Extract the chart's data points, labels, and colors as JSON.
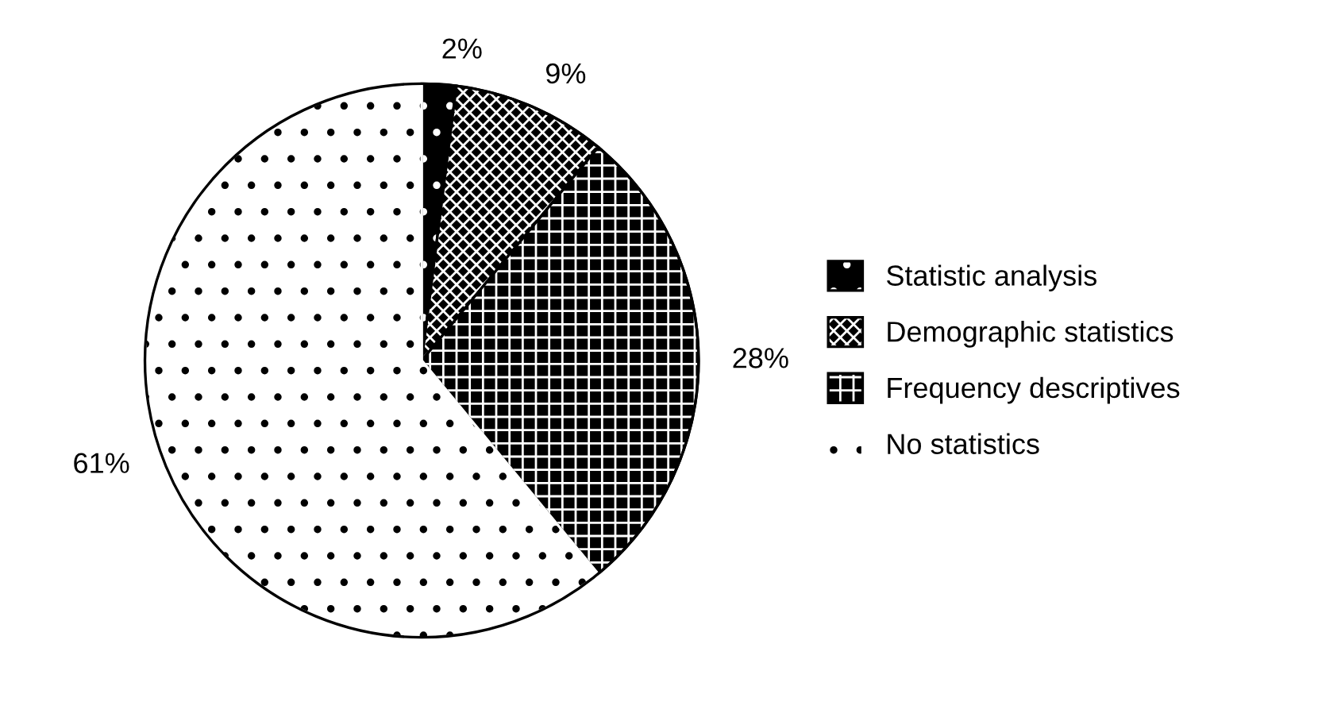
{
  "chart_data": {
    "type": "pie",
    "categories": [
      "Statistic analysis",
      "Demographic statistics",
      "Frequency descriptives",
      "No statistics"
    ],
    "values": [
      2,
      9,
      28,
      61
    ],
    "value_labels": [
      "2%",
      "9%",
      "28%",
      "61%"
    ],
    "colors": [
      "#000000",
      "#000000",
      "#000000",
      "#ffffff"
    ],
    "legend": "right"
  }
}
